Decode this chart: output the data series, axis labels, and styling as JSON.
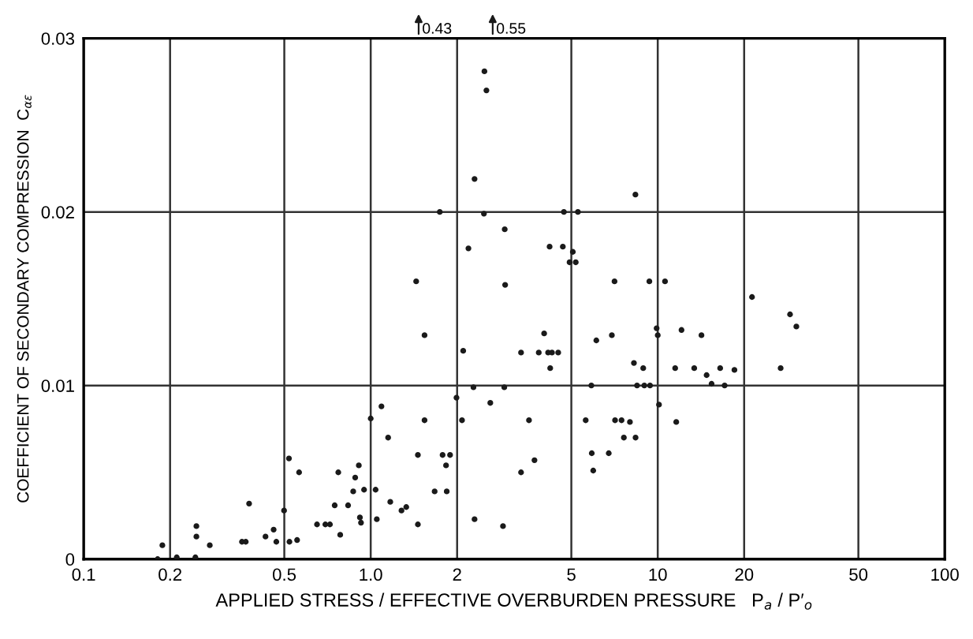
{
  "chart_data": {
    "type": "scatter",
    "xlabel": "APPLIED STRESS / EFFECTIVE OVERBURDEN PRESSURE   P$_{a}$ / P′$_{o}$",
    "ylabel": "COEFFICIENT OF SECONDARY COMPRESSION  C$_{αε}$",
    "log": "x",
    "xlim": [
      0.1,
      100
    ],
    "xticks": [
      0.1,
      0.2,
      0.5,
      {
        "value": 1,
        "label": "1.0"
      },
      2,
      5,
      10,
      20,
      50,
      100
    ],
    "ylim": [
      0,
      0.03
    ],
    "yticks": [
      0,
      0.01,
      0.02,
      0.03
    ],
    "grid": true,
    "marker": "circle",
    "annotations": [
      "0.43",
      "0.55"
    ],
    "series": [
      {
        "color": "#1a1a1a",
        "x": [
          0.188,
          0.181,
          0.211,
          0.247,
          0.247,
          0.245,
          0.275,
          0.377,
          0.356,
          0.367,
          0.43,
          0.459,
          0.469,
          0.499,
          0.519,
          0.521,
          0.554,
          0.563,
          0.65,
          0.695,
          0.721,
          0.749,
          0.771,
          0.783,
          0.834,
          0.869,
          0.883,
          0.909,
          0.917,
          0.925,
          0.948,
          1.0,
          1.04,
          1.05,
          1.09,
          1.15,
          1.17,
          1.28,
          1.33,
          1.46,
          1.46,
          1.54,
          1.54,
          1.67,
          1.78,
          1.83,
          1.84,
          1.89,
          1.99,
          2.08,
          2.1,
          2.28,
          2.3,
          2.61,
          2.89,
          2.92,
          1.44,
          2.49,
          2.53,
          2.3,
          1.74,
          2.48,
          2.93,
          2.19,
          2.94,
          4.71,
          5.27,
          8.36,
          4.2,
          4.67,
          5.06,
          4.93,
          5.18,
          7.07,
          9.35,
          10.6,
          21.3,
          28.9,
          30.4,
          3.34,
          3.34,
          3.56,
          3.72,
          3.85,
          4.02,
          4.15,
          4.28,
          4.5,
          4.22,
          5.61,
          5.87,
          5.89,
          5.96,
          6.11,
          6.75,
          6.92,
          7.1,
          7.48,
          7.62,
          8.0,
          8.26,
          8.37,
          8.47,
          8.9,
          8.98,
          9.4,
          9.91,
          10.0,
          10.1,
          11.5,
          11.6,
          12.1,
          13.4,
          14.2,
          14.8,
          15.4,
          16.5,
          17.1,
          18.5,
          26.8
        ],
        "values": [
          0.0008,
          0.0,
          0.0001,
          0.0019,
          0.0013,
          0.0001,
          0.0008,
          0.0032,
          0.001,
          0.001,
          0.0013,
          0.0017,
          0.001,
          0.0028,
          0.0058,
          0.001,
          0.0011,
          0.005,
          0.002,
          0.002,
          0.002,
          0.0031,
          0.005,
          0.0014,
          0.0031,
          0.0039,
          0.0047,
          0.0054,
          0.0024,
          0.0021,
          0.004,
          0.0081,
          0.004,
          0.0023,
          0.0088,
          0.007,
          0.0033,
          0.0028,
          0.003,
          0.006,
          0.002,
          0.0129,
          0.008,
          0.0039,
          0.006,
          0.0054,
          0.0039,
          0.006,
          0.0093,
          0.008,
          0.012,
          0.0099,
          0.0023,
          0.009,
          0.0019,
          0.0099,
          0.016,
          0.0281,
          0.027,
          0.0219,
          0.02,
          0.0199,
          0.019,
          0.0179,
          0.0158,
          0.02,
          0.02,
          0.021,
          0.018,
          0.018,
          0.0177,
          0.0171,
          0.0171,
          0.016,
          0.016,
          0.016,
          0.0151,
          0.0141,
          0.0134,
          0.0119,
          0.005,
          0.008,
          0.0057,
          0.0119,
          0.013,
          0.0119,
          0.0119,
          0.0119,
          0.011,
          0.008,
          0.01,
          0.0061,
          0.0051,
          0.0126,
          0.0061,
          0.0129,
          0.008,
          0.008,
          0.007,
          0.0079,
          0.0113,
          0.007,
          0.01,
          0.011,
          0.01,
          0.01,
          0.0133,
          0.0129,
          0.0089,
          0.011,
          0.0079,
          0.0132,
          0.011,
          0.0129,
          0.0106,
          0.0101,
          0.011,
          0.01,
          0.0109,
          0.011
        ]
      }
    ]
  }
}
